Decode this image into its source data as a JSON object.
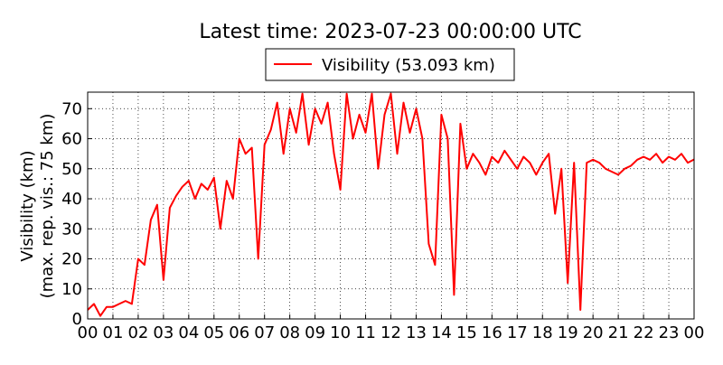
{
  "chart_data": {
    "type": "line",
    "title": "Latest time: 2023-07-23 00:00:00 UTC",
    "y_label": [
      "Visibility (km)",
      "(max. rep. vis.: 75 km)"
    ],
    "x": [
      0,
      0.25,
      0.5,
      0.75,
      1,
      1.25,
      1.5,
      1.75,
      2,
      2.25,
      2.5,
      2.75,
      3,
      3.25,
      3.5,
      3.75,
      4,
      4.25,
      4.5,
      4.75,
      5,
      5.25,
      5.5,
      5.75,
      6,
      6.25,
      6.5,
      6.75,
      7,
      7.25,
      7.5,
      7.75,
      8,
      8.25,
      8.5,
      8.75,
      9,
      9.25,
      9.5,
      9.75,
      10,
      10.25,
      10.5,
      10.75,
      11,
      11.25,
      11.5,
      11.75,
      12,
      12.25,
      12.5,
      12.75,
      13,
      13.25,
      13.5,
      13.75,
      14,
      14.25,
      14.5,
      14.75,
      15,
      15.25,
      15.5,
      15.75,
      16,
      16.25,
      16.5,
      16.75,
      17,
      17.25,
      17.5,
      17.75,
      18,
      18.25,
      18.5,
      18.75,
      19,
      19.25,
      19.5,
      19.75,
      20,
      20.25,
      20.5,
      20.75,
      21,
      21.25,
      21.5,
      21.75,
      22,
      22.25,
      22.5,
      22.75,
      23,
      23.25,
      23.5,
      23.75,
      24
    ],
    "series": [
      {
        "name": "Visibility (53.093 km)",
        "color": "#ff0000",
        "values": [
          3,
          5,
          1,
          4,
          4,
          5,
          6,
          5,
          20,
          18,
          33,
          38,
          13,
          37,
          41,
          44,
          46,
          40,
          45,
          43,
          47,
          30,
          46,
          40,
          60,
          55,
          57,
          20,
          58,
          63,
          72,
          55,
          70,
          62,
          75,
          58,
          70,
          65,
          72,
          55,
          43,
          75,
          60,
          68,
          62,
          75,
          50,
          68,
          75,
          55,
          72,
          62,
          70,
          60,
          25,
          18,
          68,
          60,
          8,
          65,
          50,
          55,
          52,
          48,
          54,
          52,
          56,
          53,
          50,
          54,
          52,
          48,
          52,
          55,
          35,
          50,
          12,
          52,
          3,
          52,
          53,
          52,
          50,
          49,
          48,
          50,
          51,
          53,
          54,
          53,
          55,
          52,
          54,
          53,
          55,
          52,
          53.093
        ]
      }
    ],
    "xlim": [
      0,
      24
    ],
    "ylim": [
      0,
      75.5
    ],
    "xticks": [
      {
        "value": 0,
        "label": "00"
      },
      {
        "value": 1,
        "label": "01"
      },
      {
        "value": 2,
        "label": "02"
      },
      {
        "value": 3,
        "label": "03"
      },
      {
        "value": 4,
        "label": "04"
      },
      {
        "value": 5,
        "label": "05"
      },
      {
        "value": 6,
        "label": "06"
      },
      {
        "value": 7,
        "label": "07"
      },
      {
        "value": 8,
        "label": "08"
      },
      {
        "value": 9,
        "label": "09"
      },
      {
        "value": 10,
        "label": "10"
      },
      {
        "value": 11,
        "label": "11"
      },
      {
        "value": 12,
        "label": "12"
      },
      {
        "value": 13,
        "label": "13"
      },
      {
        "value": 14,
        "label": "14"
      },
      {
        "value": 15,
        "label": "15"
      },
      {
        "value": 16,
        "label": "16"
      },
      {
        "value": 17,
        "label": "17"
      },
      {
        "value": 18,
        "label": "18"
      },
      {
        "value": 19,
        "label": "19"
      },
      {
        "value": 20,
        "label": "20"
      },
      {
        "value": 21,
        "label": "21"
      },
      {
        "value": 22,
        "label": "22"
      },
      {
        "value": 23,
        "label": "23"
      },
      {
        "value": 24,
        "label": "00"
      }
    ],
    "yticks": [
      0,
      10,
      20,
      30,
      40,
      50,
      60,
      70
    ],
    "grid": true
  }
}
